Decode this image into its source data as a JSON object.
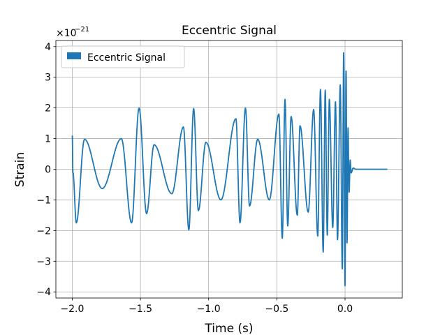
{
  "chart_data": {
    "type": "line",
    "title": "Eccentric Signal",
    "xlabel": "Time (s)",
    "ylabel": "Strain",
    "y_multiplier": {
      "base": "×10",
      "exponent": "−21"
    },
    "xlim": [
      -2.12,
      0.42
    ],
    "ylim": [
      -4.2,
      4.2
    ],
    "grid": true,
    "legend": {
      "placement": "top-left",
      "entries": [
        "Eccentric Signal"
      ]
    },
    "x_ticks": [
      {
        "value": -2.0,
        "label": "−2.0"
      },
      {
        "value": -1.5,
        "label": "−1.5"
      },
      {
        "value": -1.0,
        "label": "−1.0"
      },
      {
        "value": -0.5,
        "label": "−0.5"
      },
      {
        "value": 0.0,
        "label": "0.0"
      }
    ],
    "y_ticks": [
      {
        "value": -4,
        "label": "−4"
      },
      {
        "value": -3,
        "label": "−3"
      },
      {
        "value": -2,
        "label": "−2"
      },
      {
        "value": -1,
        "label": "−1"
      },
      {
        "value": 0,
        "label": "0"
      },
      {
        "value": 1,
        "label": "1"
      },
      {
        "value": 2,
        "label": "2"
      },
      {
        "value": 3,
        "label": "3"
      },
      {
        "value": 4,
        "label": "4"
      }
    ],
    "series": [
      {
        "name": "Eccentric Signal",
        "color": "#1f77b4",
        "extrema": [
          [
            -2.0,
            1.1
          ],
          [
            -1.995,
            -0.1
          ],
          [
            -1.97,
            -1.75
          ],
          [
            -1.91,
            0.98
          ],
          [
            -1.78,
            -0.63
          ],
          [
            -1.64,
            1.0
          ],
          [
            -1.565,
            -1.75
          ],
          [
            -1.51,
            2.0
          ],
          [
            -1.455,
            -1.45
          ],
          [
            -1.4,
            0.8
          ],
          [
            -1.27,
            -0.8
          ],
          [
            -1.185,
            1.38
          ],
          [
            -1.145,
            -1.98
          ],
          [
            -1.11,
            1.98
          ],
          [
            -1.075,
            -1.35
          ],
          [
            -1.02,
            0.88
          ],
          [
            -0.91,
            -1.0
          ],
          [
            -0.8,
            1.65
          ],
          [
            -0.77,
            -1.75
          ],
          [
            -0.73,
            2.0
          ],
          [
            -0.7,
            -1.2
          ],
          [
            -0.64,
            0.98
          ],
          [
            -0.555,
            -1.0
          ],
          [
            -0.485,
            1.8
          ],
          [
            -0.46,
            -2.25
          ],
          [
            -0.44,
            2.28
          ],
          [
            -0.42,
            -1.85
          ],
          [
            -0.395,
            1.72
          ],
          [
            -0.35,
            -1.5
          ],
          [
            -0.33,
            1.42
          ],
          [
            -0.27,
            -1.4
          ],
          [
            -0.23,
            1.95
          ],
          [
            -0.2,
            -2.18
          ],
          [
            -0.18,
            2.6
          ],
          [
            -0.16,
            -2.7
          ],
          [
            -0.145,
            2.58
          ],
          [
            -0.13,
            -2.15
          ],
          [
            -0.115,
            2.28
          ],
          [
            -0.09,
            -1.9
          ],
          [
            -0.07,
            2.2
          ],
          [
            -0.055,
            -2.3
          ],
          [
            -0.035,
            2.75
          ],
          [
            -0.02,
            -3.25
          ],
          [
            -0.01,
            3.8
          ],
          [
            0.0,
            -3.8
          ],
          [
            0.008,
            3.2
          ],
          [
            0.015,
            -2.4
          ],
          [
            0.022,
            1.35
          ],
          [
            0.03,
            -0.75
          ],
          [
            0.038,
            0.3
          ],
          [
            0.045,
            -0.12
          ],
          [
            0.06,
            0.04
          ],
          [
            0.08,
            0.0
          ],
          [
            0.31,
            0.0
          ]
        ]
      }
    ]
  }
}
